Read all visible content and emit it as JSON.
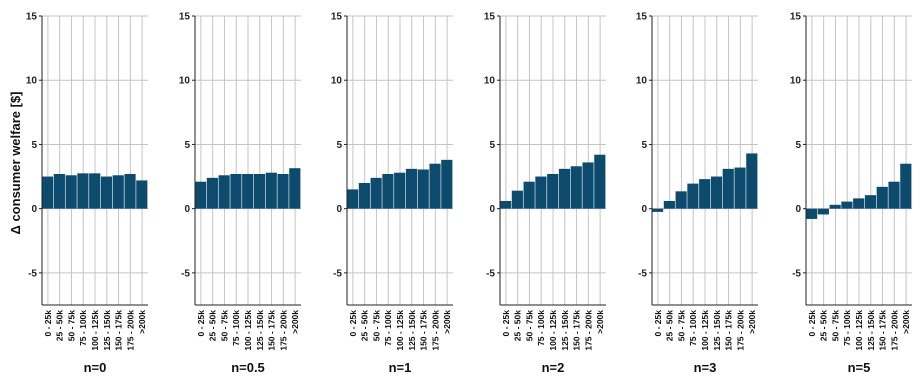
{
  "figure": {
    "ylabel": "Δ consumer welfare [$]"
  },
  "colors": {
    "bar": "#0d4b6e",
    "grid": "#c4c4c4",
    "axis": "#222222"
  },
  "chart_data": [
    {
      "type": "bar",
      "title": "n=0",
      "ylabel": "Δ consumer welfare [$]",
      "ylim": [
        -7.5,
        15
      ],
      "yticks": [
        -5,
        0,
        5,
        10,
        15
      ],
      "grid": true,
      "categories": [
        "0 - 25k",
        "25 - 50k",
        "50 - 75k",
        "75 - 100k",
        "100 - 125k",
        "125 - 150k",
        "150 - 175k",
        "175 - 200k",
        ">200k"
      ],
      "values": [
        2.5,
        2.7,
        2.6,
        2.75,
        2.75,
        2.5,
        2.6,
        2.7,
        2.2
      ]
    },
    {
      "type": "bar",
      "title": "n=0.5",
      "ylim": [
        -7.5,
        15
      ],
      "yticks": [
        -5,
        0,
        5,
        10,
        15
      ],
      "grid": true,
      "categories": [
        "0 - 25k",
        "25 - 50k",
        "50 - 75k",
        "75 - 100k",
        "100 - 125k",
        "125 - 150k",
        "150 - 175k",
        "175 - 200k",
        ">200k"
      ],
      "values": [
        2.1,
        2.4,
        2.6,
        2.7,
        2.7,
        2.7,
        2.8,
        2.7,
        3.15
      ]
    },
    {
      "type": "bar",
      "title": "n=1",
      "ylim": [
        -7.5,
        15
      ],
      "yticks": [
        -5,
        0,
        5,
        10,
        15
      ],
      "grid": true,
      "categories": [
        "0 - 25k",
        "25 - 50k",
        "50 - 75k",
        "75 - 100k",
        "100 - 125k",
        "125 - 150k",
        "150 - 175k",
        "175 - 200k",
        ">200k"
      ],
      "values": [
        1.5,
        2.0,
        2.4,
        2.7,
        2.8,
        3.1,
        3.05,
        3.5,
        3.8
      ]
    },
    {
      "type": "bar",
      "title": "n=2",
      "ylim": [
        -7.5,
        15
      ],
      "yticks": [
        -5,
        0,
        5,
        10,
        15
      ],
      "grid": true,
      "categories": [
        "0 - 25k",
        "25 - 50k",
        "50 - 75k",
        "75 - 100k",
        "100 - 125k",
        "125 - 150k",
        "150 - 175k",
        "175 - 200k",
        ">200k"
      ],
      "values": [
        0.6,
        1.4,
        2.1,
        2.5,
        2.7,
        3.1,
        3.3,
        3.6,
        4.2
      ]
    },
    {
      "type": "bar",
      "title": "n=3",
      "ylim": [
        -7.5,
        15
      ],
      "yticks": [
        -5,
        0,
        5,
        10,
        15
      ],
      "grid": true,
      "categories": [
        "0 - 25k",
        "25 - 50k",
        "50 - 75k",
        "75 - 100k",
        "100 - 125k",
        "125 - 150k",
        "150 - 175k",
        "175 - 200k",
        ">200k"
      ],
      "values": [
        -0.25,
        0.6,
        1.35,
        1.95,
        2.3,
        2.5,
        3.1,
        3.2,
        4.3
      ]
    },
    {
      "type": "bar",
      "title": "n=5",
      "ylim": [
        -7.5,
        15
      ],
      "yticks": [
        -5,
        0,
        5,
        10,
        15
      ],
      "grid": true,
      "categories": [
        "0 - 25k",
        "25 - 50k",
        "50 - 75k",
        "75 - 100k",
        "100 - 125k",
        "125 - 150k",
        "150 - 175k",
        "175 - 200k",
        ">200k"
      ],
      "values": [
        -0.8,
        -0.45,
        0.3,
        0.55,
        0.8,
        1.05,
        1.7,
        2.1,
        3.5
      ]
    }
  ]
}
